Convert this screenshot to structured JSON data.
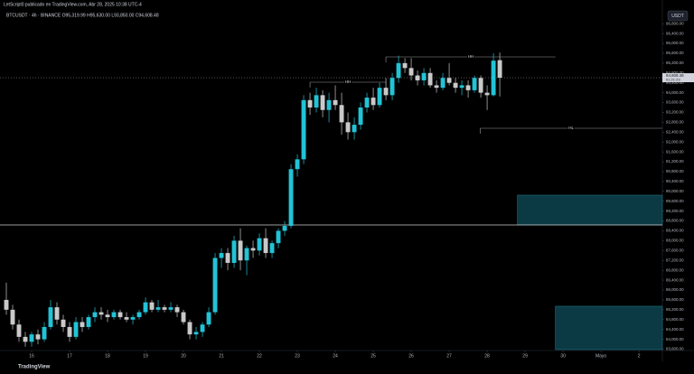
{
  "chart_data": {
    "type": "candlestick",
    "title": "LetScript0 publicado en TradingView.com, Abr 28, 2025 10:38 UTC-4",
    "subtitle": "BTCUSDT · 4h · BINANCE  O95,319.99  H95,630.00  L93,850.00  C94,608.48",
    "currency": "USDT",
    "watermark": "TradingView",
    "last_price_label": "94,608.48",
    "countdown": "01:21:23",
    "up_color": "#22c3d6",
    "down_color": "#c9c9c9",
    "open": [
      85600,
      85200,
      84600,
      84100,
      83900,
      84200,
      84000,
      84500,
      85300,
      84800,
      84500,
      84100,
      84700,
      84500,
      84900,
      85100,
      85000,
      84900,
      85100,
      84900,
      84800,
      84900,
      85100,
      85500,
      85200,
      85300,
      85200,
      85300,
      85100,
      84700,
      84200,
      84300,
      84600,
      85100,
      87300,
      87500,
      87100,
      88000,
      87200,
      87700,
      87600,
      88100,
      87500,
      87900,
      88400,
      88600,
      90900,
      91300,
      93700,
      93400,
      93900,
      93300,
      93700,
      93500,
      92800,
      92400,
      92700,
      93400,
      93800,
      93500,
      94200,
      93900,
      94600,
      95200,
      95000,
      94700,
      94500,
      94800,
      94300,
      94200,
      94600,
      94400,
      94200,
      94300,
      94100,
      94600,
      94000,
      93900,
      95319.99
    ],
    "high": [
      86300,
      85400,
      84800,
      84300,
      84300,
      84400,
      84700,
      85600,
      85500,
      85000,
      84700,
      84900,
      84900,
      85000,
      85300,
      85300,
      85200,
      85200,
      85200,
      85100,
      85000,
      85200,
      85700,
      85600,
      85600,
      85400,
      85500,
      85400,
      85200,
      84800,
      84500,
      84700,
      85300,
      87500,
      87700,
      87700,
      88200,
      88500,
      87800,
      88000,
      88300,
      88500,
      88000,
      88500,
      88800,
      91100,
      91500,
      93900,
      94000,
      94200,
      94100,
      94000,
      94300,
      94000,
      93200,
      93000,
      93600,
      94000,
      94200,
      94400,
      94600,
      94800,
      95500,
      95400,
      95400,
      94900,
      95000,
      95000,
      94500,
      94800,
      95200,
      94600,
      94500,
      94500,
      94700,
      94700,
      94300,
      95600,
      95630
    ],
    "low": [
      85000,
      84400,
      83900,
      83700,
      83700,
      83800,
      83900,
      84400,
      84600,
      84300,
      83900,
      84000,
      84300,
      84400,
      84700,
      84800,
      84700,
      84800,
      84800,
      84700,
      84600,
      84800,
      85000,
      85100,
      85100,
      85100,
      85100,
      84900,
      84600,
      84000,
      84000,
      84100,
      84500,
      85000,
      86900,
      86800,
      86900,
      86800,
      86600,
      87300,
      87400,
      87300,
      87300,
      87700,
      88200,
      88500,
      90600,
      91100,
      93100,
      93200,
      93000,
      92800,
      93300,
      92300,
      92100,
      92100,
      92500,
      93200,
      93300,
      93400,
      93700,
      93700,
      94400,
      94800,
      94500,
      94300,
      94300,
      94200,
      94000,
      94100,
      94300,
      94000,
      93900,
      93800,
      94000,
      93800,
      93300,
      93850,
      93850
    ],
    "close": [
      85200,
      84600,
      84100,
      83900,
      84200,
      84000,
      84500,
      85300,
      84800,
      84500,
      84100,
      84700,
      84500,
      84900,
      85100,
      85000,
      84900,
      85100,
      84900,
      84800,
      84900,
      85100,
      85500,
      85200,
      85300,
      85200,
      85300,
      85100,
      84700,
      84200,
      84300,
      84600,
      85100,
      87300,
      87500,
      87100,
      88000,
      87200,
      87700,
      87600,
      88100,
      87500,
      87900,
      88400,
      88600,
      90900,
      91300,
      93700,
      93400,
      93900,
      93300,
      93700,
      93500,
      92800,
      92400,
      92700,
      93400,
      93800,
      93500,
      94200,
      93900,
      94600,
      95200,
      95000,
      94700,
      94500,
      94800,
      94300,
      94200,
      94600,
      94400,
      94200,
      94300,
      94100,
      94600,
      94000,
      93900,
      95300,
      94608.48
    ],
    "xlim": [
      -1,
      103.7
    ],
    "xticks": [
      {
        "value": 4,
        "label": "16"
      },
      {
        "value": 10,
        "label": "17"
      },
      {
        "value": 16,
        "label": "18"
      },
      {
        "value": 22,
        "label": "19"
      },
      {
        "value": 28,
        "label": "20"
      },
      {
        "value": 34,
        "label": "21"
      },
      {
        "value": 40,
        "label": "22"
      },
      {
        "value": 46,
        "label": "23"
      },
      {
        "value": 52,
        "label": "24"
      },
      {
        "value": 58,
        "label": "25"
      },
      {
        "value": 64,
        "label": "26"
      },
      {
        "value": 70,
        "label": "27"
      },
      {
        "value": 76,
        "label": "28"
      },
      {
        "value": 82,
        "label": "29"
      },
      {
        "value": 88,
        "label": "30"
      },
      {
        "value": 94,
        "label": "Mayo"
      },
      {
        "value": 100,
        "label": "2"
      }
    ],
    "ylim": [
      83400,
      97100
    ],
    "yticks": [
      {
        "value": 96800,
        "label": "96,800.00"
      },
      {
        "value": 96400,
        "label": "96,400.00"
      },
      {
        "value": 96000,
        "label": "96,000.00"
      },
      {
        "value": 95600,
        "label": "95,600.00"
      },
      {
        "value": 95200,
        "label": "95,200.00"
      },
      {
        "value": 94800,
        "label": "94,800.00"
      },
      {
        "value": 94400,
        "label": "94,400.00"
      },
      {
        "value": 94000,
        "label": "94,000.00"
      },
      {
        "value": 93600,
        "label": "93,600.00"
      },
      {
        "value": 93200,
        "label": "93,200.00"
      },
      {
        "value": 92800,
        "label": "92,800.00"
      },
      {
        "value": 92400,
        "label": "92,400.00"
      },
      {
        "value": 92000,
        "label": "92,000.00"
      },
      {
        "value": 91600,
        "label": "91,600.00"
      },
      {
        "value": 91200,
        "label": "91,200.00"
      },
      {
        "value": 90800,
        "label": "90,800.00"
      },
      {
        "value": 90400,
        "label": "90,400.00"
      },
      {
        "value": 90000,
        "label": "90,000.00"
      },
      {
        "value": 89600,
        "label": "89,600.00"
      },
      {
        "value": 89200,
        "label": "89,200.00"
      },
      {
        "value": 88800,
        "label": "88,800.00"
      },
      {
        "value": 88400,
        "label": "88,400.00"
      },
      {
        "value": 88000,
        "label": "88,000.00"
      },
      {
        "value": 87600,
        "label": "87,600.00"
      },
      {
        "value": 87200,
        "label": "87,200.00"
      },
      {
        "value": 86800,
        "label": "86,800.00"
      },
      {
        "value": 86400,
        "label": "86,400.00"
      },
      {
        "value": 86000,
        "label": "86,000.00"
      },
      {
        "value": 85600,
        "label": "85,600.00"
      },
      {
        "value": 85200,
        "label": "85,200.00"
      },
      {
        "value": 84800,
        "label": "84,800.00"
      },
      {
        "value": 84400,
        "label": "84,400.00"
      },
      {
        "value": 84000,
        "label": "84,000.00"
      },
      {
        "value": 83600,
        "label": "83,600.00"
      }
    ],
    "levels": [
      {
        "text": "HH",
        "price": 94426,
        "from": 48,
        "to": 60
      },
      {
        "text": "HH",
        "price": 95452,
        "from": 60,
        "to": 86.8
      },
      {
        "text": "HL",
        "price": 92558,
        "from": 74.9,
        "to": 103.7
      }
    ],
    "hline": 88638,
    "zones": [
      {
        "top": 89847,
        "bottom": 88638,
        "from": 80.8
      },
      {
        "top": 85341,
        "bottom": 83583,
        "from": 86.8
      }
    ]
  }
}
